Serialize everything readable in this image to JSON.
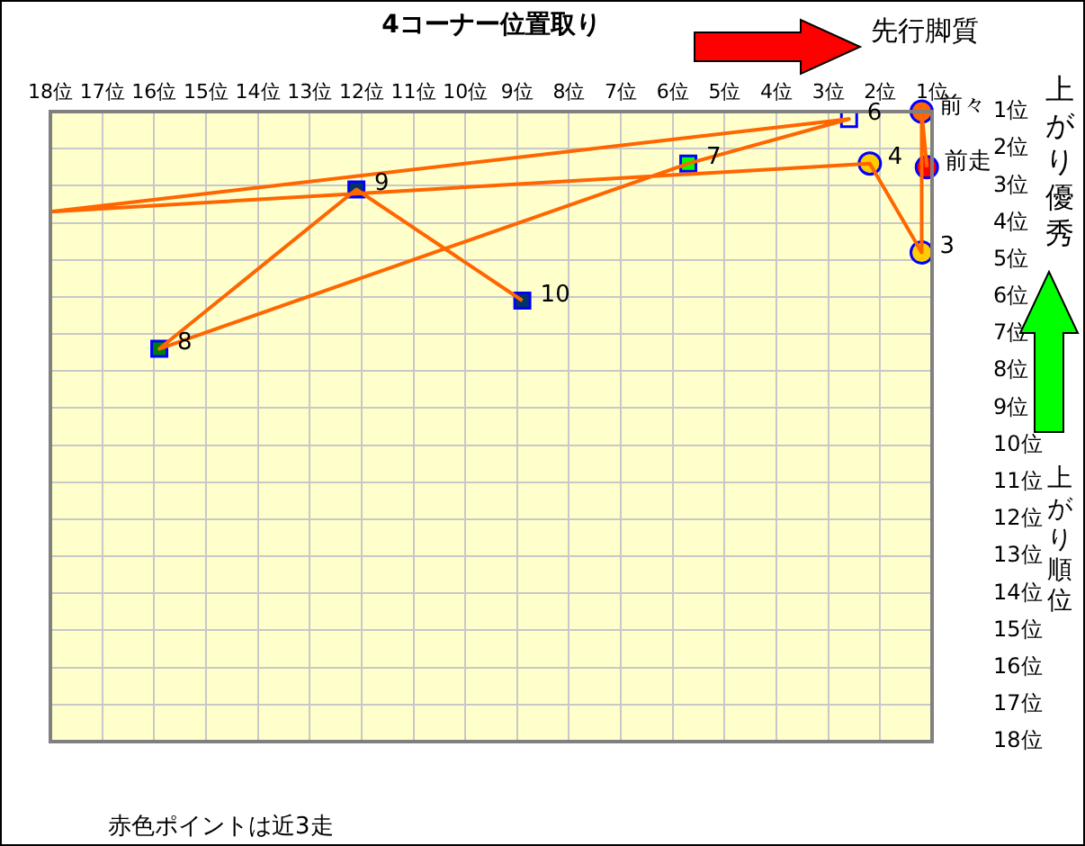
{
  "chart_data": {
    "type": "line",
    "xlabel": "4コーナー位置取り",
    "ylabel": "上がり順位",
    "xlim": [
      18,
      1
    ],
    "xticks": [
      {
        "value": 18,
        "label": "18位"
      },
      {
        "value": 17,
        "label": "17位"
      },
      {
        "value": 16,
        "label": "16位"
      },
      {
        "value": 15,
        "label": "15位"
      },
      {
        "value": 14,
        "label": "14位"
      },
      {
        "value": 13,
        "label": "13位"
      },
      {
        "value": 12,
        "label": "12位"
      },
      {
        "value": 11,
        "label": "11位"
      },
      {
        "value": 10,
        "label": "10位"
      },
      {
        "value": 9,
        "label": "9位"
      },
      {
        "value": 8,
        "label": "8位"
      },
      {
        "value": 7,
        "label": "7位"
      },
      {
        "value": 6,
        "label": "6位"
      },
      {
        "value": 5,
        "label": "5位"
      },
      {
        "value": 4,
        "label": "4位"
      },
      {
        "value": 3,
        "label": "3位"
      },
      {
        "value": 2,
        "label": "2位"
      },
      {
        "value": 1,
        "label": "1位"
      }
    ],
    "ylim": [
      18,
      1
    ],
    "yticks": [
      {
        "value": 1,
        "label": "1位"
      },
      {
        "value": 2,
        "label": "2位"
      },
      {
        "value": 3,
        "label": "3位"
      },
      {
        "value": 4,
        "label": "4位"
      },
      {
        "value": 5,
        "label": "5位"
      },
      {
        "value": 6,
        "label": "6位"
      },
      {
        "value": 7,
        "label": "7位"
      },
      {
        "value": 8,
        "label": "8位"
      },
      {
        "value": 9,
        "label": "9位"
      },
      {
        "value": 10,
        "label": "10位"
      },
      {
        "value": 11,
        "label": "11位"
      },
      {
        "value": 12,
        "label": "12位"
      },
      {
        "value": 13,
        "label": "13位"
      },
      {
        "value": 14,
        "label": "14位"
      },
      {
        "value": 15,
        "label": "15位"
      },
      {
        "value": 16,
        "label": "16位"
      },
      {
        "value": 17,
        "label": "17位"
      },
      {
        "value": 18,
        "label": "18位"
      }
    ],
    "grid": true,
    "legend": false,
    "series": [
      {
        "type": "line",
        "color": "#ff6600",
        "marker": "none",
        "x": [
          1.1,
          1.2,
          1.2,
          2.2,
          18,
          2.6,
          5.7,
          15.9,
          12.1,
          8.9
        ],
        "values": [
          2.5,
          1,
          4.8,
          2.4,
          3.7,
          1.2,
          2.4,
          7.4,
          3.1,
          6.1
        ]
      },
      {
        "type": "scatter",
        "marker": "circle",
        "colors": [
          "#ff0000",
          "#ff6600",
          "#ffcc00",
          "#ffcc00"
        ],
        "x": [
          1.1,
          1.2,
          1.2,
          2.2
        ],
        "values": [
          2.5,
          1,
          4.8,
          2.4
        ]
      },
      {
        "type": "scatter",
        "marker": "square",
        "colors": [
          "#ffffcc",
          "#00ff00",
          "#008000",
          "#003366",
          "#003366"
        ],
        "x": [
          2.6,
          5.7,
          15.9,
          12.1,
          8.9
        ],
        "values": [
          1.2,
          2.4,
          7.4,
          3.1,
          6.1
        ]
      }
    ],
    "annotations": [
      "先行脚質",
      "上がり優秀",
      "赤色ポイントは近3走",
      {
        "text": "前走",
        "x": 1.1,
        "y": 2.5
      },
      {
        "text": "前々",
        "x": 1.2,
        "y": 1
      },
      {
        "text": "3",
        "x": 1.2,
        "y": 4.8
      },
      {
        "text": "4",
        "x": 2.2,
        "y": 2.4
      },
      {
        "text": "6",
        "x": 2.6,
        "y": 1.2
      },
      {
        "text": "7",
        "x": 5.7,
        "y": 2.4
      },
      {
        "text": "8",
        "x": 15.9,
        "y": 7.4
      },
      {
        "text": "9",
        "x": 12.1,
        "y": 3.1
      },
      {
        "text": "10",
        "x": 8.9,
        "y": 6.1
      }
    ]
  }
}
